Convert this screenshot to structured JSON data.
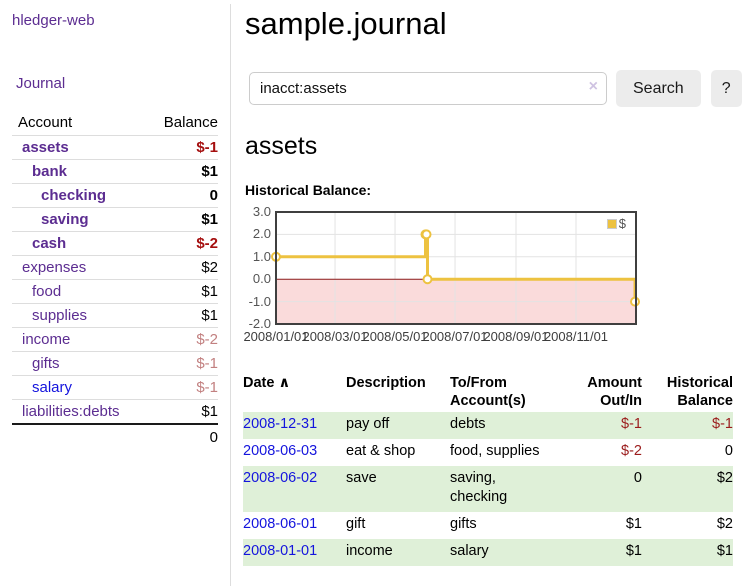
{
  "brand": {
    "label": "hledger-web"
  },
  "nav": {
    "journal": "Journal"
  },
  "sidebar": {
    "columns": {
      "account": "Account",
      "balance": "Balance"
    },
    "rows": [
      {
        "name": "assets",
        "balance": "$-1",
        "level": 1,
        "bold": true,
        "name_color": "purple",
        "balance_color": "negative-strong"
      },
      {
        "name": "bank",
        "balance": "$1",
        "level": 2,
        "bold": true,
        "name_color": "purple",
        "balance_color": "positive"
      },
      {
        "name": "checking",
        "balance": "0",
        "level": 3,
        "bold": true,
        "name_color": "purple",
        "balance_color": "positive"
      },
      {
        "name": "saving",
        "balance": "$1",
        "level": 3,
        "bold": true,
        "name_color": "purple",
        "balance_color": "positive"
      },
      {
        "name": "cash",
        "balance": "$-2",
        "level": 2,
        "bold": true,
        "name_color": "purple",
        "balance_color": "negative-strong"
      },
      {
        "name": "expenses",
        "balance": "$2",
        "level": 1,
        "bold": false,
        "name_color": "purple",
        "balance_color": "positive"
      },
      {
        "name": "food",
        "balance": "$1",
        "level": 2,
        "bold": false,
        "name_color": "purple",
        "balance_color": "positive"
      },
      {
        "name": "supplies",
        "balance": "$1",
        "level": 2,
        "bold": false,
        "name_color": "purple",
        "balance_color": "positive"
      },
      {
        "name": "income",
        "balance": "$-2",
        "level": 1,
        "bold": false,
        "name_color": "purple",
        "balance_color": "negative-dim"
      },
      {
        "name": "gifts",
        "balance": "$-1",
        "level": 2,
        "bold": false,
        "name_color": "purple",
        "balance_color": "negative-dim"
      },
      {
        "name": "salary",
        "balance": "$-1",
        "level": 2,
        "bold": false,
        "name_color": "blue",
        "balance_color": "negative-dim"
      },
      {
        "name": "liabilities:debts",
        "balance": "$1",
        "level": 1,
        "bold": false,
        "name_color": "purple",
        "balance_color": "positive"
      }
    ],
    "total": "0"
  },
  "header": {
    "title": "sample.journal"
  },
  "search": {
    "value": "inacct:assets",
    "clear_icon": "×",
    "button_label": "Search",
    "help_label": "?"
  },
  "account_view": {
    "title": "assets",
    "chart_heading": "Historical Balance:"
  },
  "chart_data": {
    "type": "line",
    "style": "steps-with-markers",
    "title": "Historical Balance:",
    "series": [
      {
        "name": "$",
        "color": "#edc240",
        "points": [
          {
            "date": "2008-01-01",
            "value": 1
          },
          {
            "date": "2008-06-01",
            "value": 2
          },
          {
            "date": "2008-06-02",
            "value": 2
          },
          {
            "date": "2008-06-03",
            "value": 0
          },
          {
            "date": "2008-12-31",
            "value": -1
          }
        ]
      }
    ],
    "x_range": [
      "2008-01-01",
      "2009-01-01"
    ],
    "x_ticks": [
      "2008/01/01",
      "2008/03/01",
      "2008/05/01",
      "2008/07/01",
      "2008/09/01",
      "2008/11/01"
    ],
    "y_ticks": [
      "3.0",
      "2.0",
      "1.0",
      "0.0",
      "-1.0",
      "-2.0"
    ],
    "ylim": [
      -2,
      3
    ],
    "grid": true,
    "legend_position": "top-right",
    "grid_color": "#e3e3e3",
    "border_color": "#3f3f3f",
    "negative_region_color": "#fadbdb",
    "zero_line_color": "#8b1a1a"
  },
  "register": {
    "columns": [
      "Date",
      "Description",
      "To/From Account(s)",
      "Amount Out/In",
      "Historical Balance"
    ],
    "sort_arrow": "∧",
    "rows": [
      {
        "date": "2008-12-31",
        "description": "pay off",
        "accounts": "debts",
        "amount": "$-1",
        "amount_negative": true,
        "balance": "$-1",
        "balance_negative": true
      },
      {
        "date": "2008-06-03",
        "description": "eat & shop",
        "accounts": "food, supplies",
        "amount": "$-2",
        "amount_negative": true,
        "balance": "0",
        "balance_negative": false
      },
      {
        "date": "2008-06-02",
        "description": "save",
        "accounts": "saving, checking",
        "amount": "0",
        "amount_negative": false,
        "balance": "$2",
        "balance_negative": false
      },
      {
        "date": "2008-06-01",
        "description": "gift",
        "accounts": "gifts",
        "amount": "$1",
        "amount_negative": false,
        "balance": "$2",
        "balance_negative": false
      },
      {
        "date": "2008-01-01",
        "description": "income",
        "accounts": "salary",
        "amount": "$1",
        "amount_negative": false,
        "balance": "$1",
        "balance_negative": false
      }
    ]
  }
}
